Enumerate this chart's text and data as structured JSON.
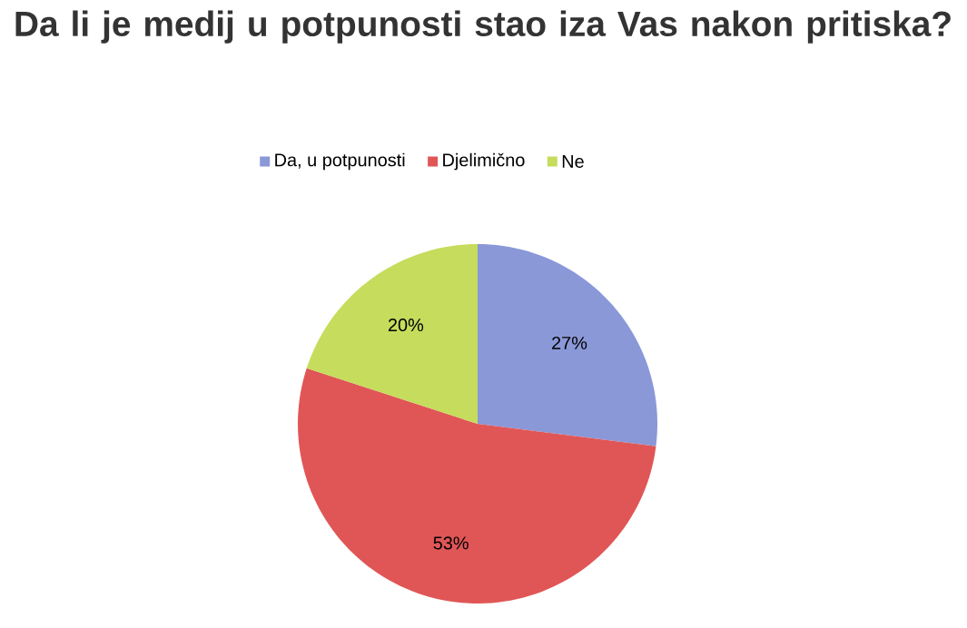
{
  "chart_data": {
    "type": "pie",
    "title": "Da li je medij u potpunosti stao iza Vas nakon pritiska?",
    "categories": [
      "Da, u potpunosti",
      "Djelimično",
      "Ne"
    ],
    "values": [
      27,
      53,
      20
    ],
    "colors": [
      "#8a98d8",
      "#e05656",
      "#c6dc5c"
    ],
    "value_labels": [
      "27%",
      "53%",
      "20%"
    ],
    "legend": "top"
  }
}
